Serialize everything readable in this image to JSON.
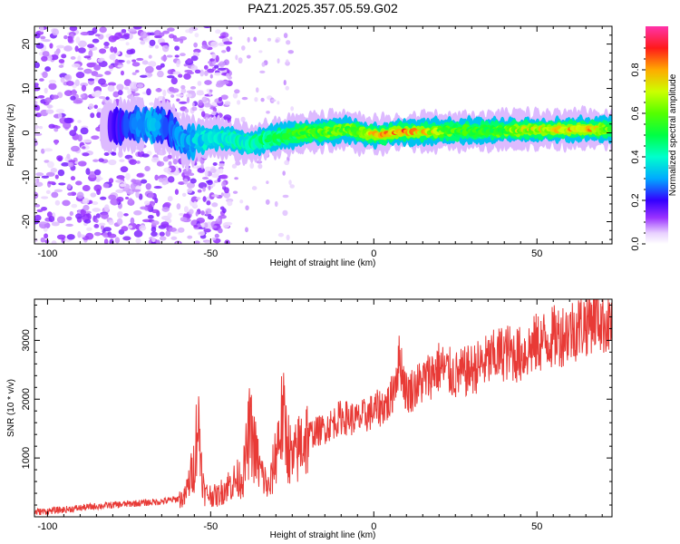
{
  "title": "PAZ1.2025.357.05.59.G02",
  "chart_data": [
    {
      "type": "heatmap",
      "name": "spectrogram",
      "xlabel": "Height of straight line (km)",
      "ylabel": "Frequency (Hz)",
      "xlim": [
        -104,
        73
      ],
      "ylim": [
        -25,
        24
      ],
      "xticks": [
        -100,
        -50,
        0,
        50
      ],
      "xtick_labels": [
        "-100",
        "-50",
        "0",
        "50"
      ],
      "yticks": [
        -20,
        -10,
        0,
        10,
        20
      ],
      "ytick_labels": [
        "-20",
        "-10",
        "0",
        "10",
        "20"
      ],
      "ridge": {
        "description": "dominant frequency ridge",
        "x": [
          -83,
          -78,
          -73,
          -68,
          -63,
          -58,
          -53,
          -48,
          -43,
          -38,
          -33,
          -28,
          -23,
          -18,
          -13,
          -8,
          -3,
          2,
          8,
          15,
          25,
          35,
          45,
          55,
          65,
          73
        ],
        "freq": [
          1.0,
          1.5,
          2.0,
          1.8,
          1.5,
          -2.0,
          -1.5,
          -1.0,
          -1.5,
          -2.5,
          -1.5,
          -0.8,
          -0.2,
          0.2,
          0.3,
          0.8,
          -0.2,
          -0.5,
          0.2,
          0.3,
          0.4,
          0.5,
          0.6,
          0.7,
          0.8,
          0.9
        ],
        "amplitude": [
          0.12,
          0.2,
          0.25,
          0.3,
          0.22,
          0.3,
          0.35,
          0.38,
          0.4,
          0.42,
          0.45,
          0.48,
          0.52,
          0.55,
          0.58,
          0.6,
          0.65,
          0.75,
          0.85,
          0.72,
          0.55,
          0.5,
          0.65,
          0.7,
          0.8,
          0.55
        ]
      }
    },
    {
      "type": "colorbar",
      "name": "amplitude-scale",
      "label": "Normalized spectral amplitude",
      "range": [
        0.0,
        1.0
      ],
      "ticks": [
        0.0,
        0.2,
        0.4,
        0.6,
        0.8
      ],
      "tick_labels": [
        "0.0",
        "0.2",
        "0.4",
        "0.6",
        "0.8"
      ]
    },
    {
      "type": "line",
      "name": "snr",
      "color": "#e83a36",
      "xlabel": "Height of straight line (km)",
      "ylabel": "SNR (10 * v/v)",
      "xlim": [
        -104,
        73
      ],
      "ylim": [
        0,
        3700
      ],
      "xticks": [
        -100,
        -50,
        0,
        50
      ],
      "xtick_labels": [
        "-100",
        "-50",
        "0",
        "50"
      ],
      "yticks": [
        1000,
        2000,
        3000
      ],
      "ytick_labels": [
        "1000",
        "2000",
        "3000"
      ],
      "x": [
        -104,
        -95,
        -85,
        -75,
        -65,
        -58,
        -55,
        -54,
        -52,
        -48,
        -45,
        -40,
        -38,
        -35,
        -32,
        -30,
        -28,
        -25,
        -22,
        -20,
        -15,
        -10,
        -5,
        0,
        5,
        8,
        10,
        15,
        20,
        25,
        30,
        35,
        40,
        45,
        50,
        55,
        60,
        65,
        68,
        70,
        73
      ],
      "y": [
        80,
        120,
        180,
        220,
        260,
        320,
        900,
        1700,
        400,
        350,
        520,
        700,
        1500,
        800,
        450,
        1100,
        1700,
        900,
        1300,
        1400,
        1500,
        1700,
        1650,
        1800,
        1950,
        2700,
        2100,
        2300,
        2550,
        2400,
        2500,
        2650,
        2800,
        2750,
        2950,
        3050,
        3150,
        3300,
        3450,
        3350,
        3300
      ]
    }
  ]
}
